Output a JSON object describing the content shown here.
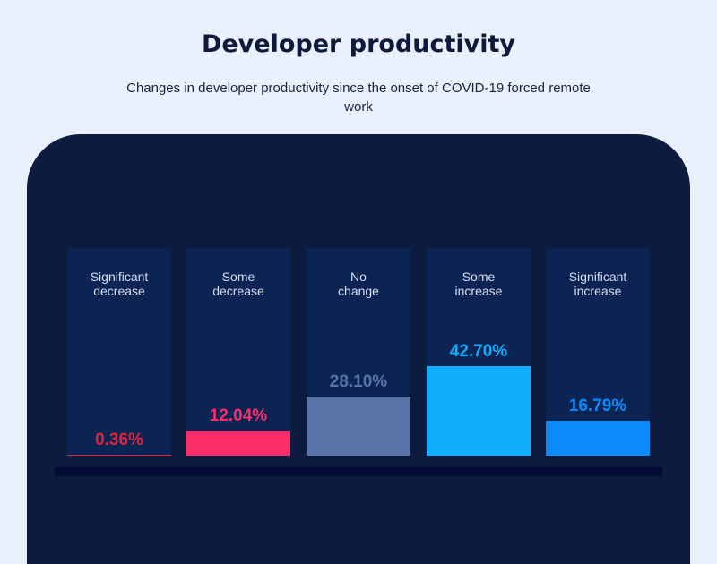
{
  "title": "Developer productivity",
  "subtitle": "Changes in developer productivity since the onset of COVID-19 forced remote work",
  "chart_data": {
    "type": "bar",
    "title": "Developer productivity",
    "subtitle": "Changes in developer productivity since the onset of COVID-19 forced remote work",
    "categories": [
      "Significant decrease",
      "Some decrease",
      "No change",
      "Some increase",
      "Significant increase"
    ],
    "values": [
      0.36,
      12.04,
      28.1,
      42.7,
      16.79
    ],
    "labels": [
      "0.36%",
      "12.04%",
      "28.10%",
      "42.70%",
      "16.79%"
    ],
    "colors": [
      "#e0243c",
      "#fb2d6b",
      "#5874a6",
      "#10aefc",
      "#0b8afc"
    ],
    "ylim": [
      0,
      100
    ],
    "grid": false
  }
}
